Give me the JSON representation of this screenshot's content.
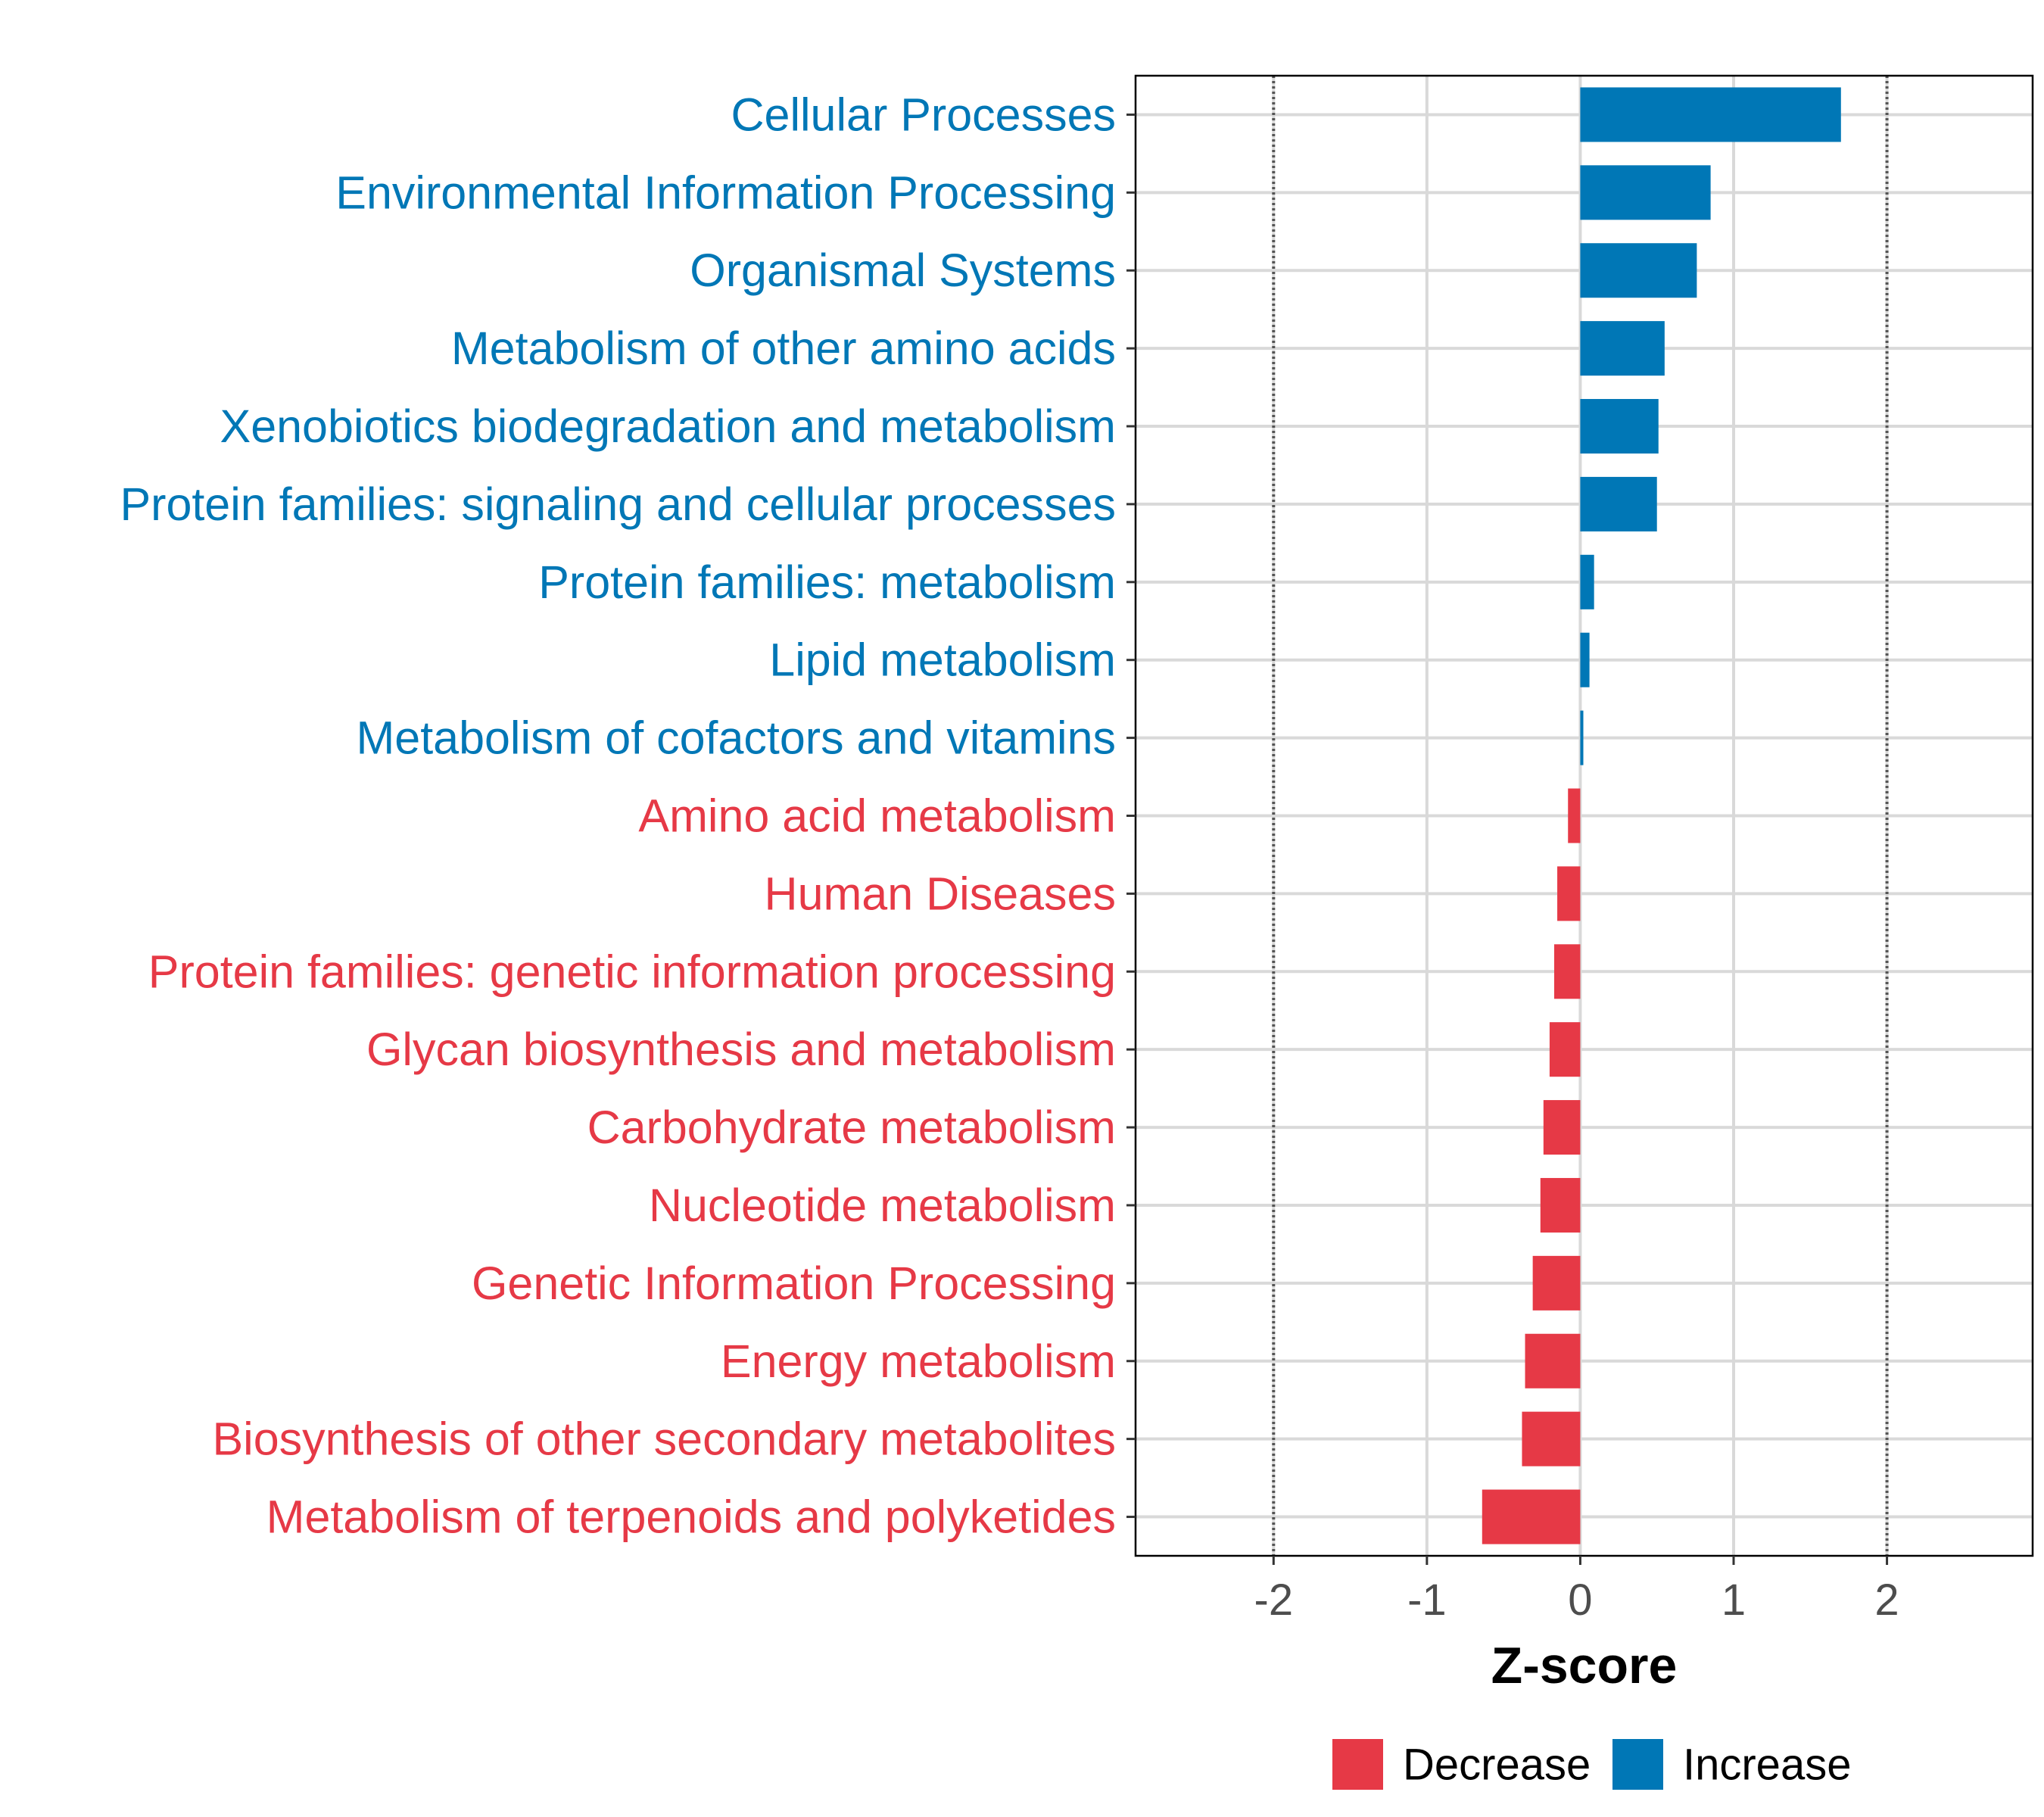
{
  "colors": {
    "increase": "#0077B6",
    "decrease": "#E63946",
    "grid": "#D9D9D9",
    "axis_text": "#4D4D4D",
    "reference_line": "#555555"
  },
  "chart_data": {
    "type": "bar",
    "orientation": "horizontal",
    "title": "",
    "xlabel": "Z-score",
    "ylabel": "",
    "xlim": [
      -2.9,
      2.95
    ],
    "xticks": [
      -2,
      -1,
      0,
      1,
      2
    ],
    "xtick_labels": [
      "-2",
      "-1",
      "0",
      "1",
      "2"
    ],
    "reference_lines": [
      -2,
      2
    ],
    "grid": true,
    "legend_position": "bottom",
    "legend": [
      {
        "label": "Decrease",
        "color": "#E63946"
      },
      {
        "label": "Increase",
        "color": "#0077B6"
      }
    ],
    "categories": [
      "Cellular Processes",
      "Environmental Information Processing",
      "Organismal Systems",
      "Metabolism of other amino acids",
      "Xenobiotics biodegradation and metabolism",
      "Protein families: signaling and cellular processes",
      "Protein families: metabolism",
      "Lipid metabolism",
      "Metabolism of cofactors and vitamins",
      "Amino acid metabolism",
      "Human Diseases",
      "Protein families: genetic information processing",
      "Glycan biosynthesis and metabolism",
      "Carbohydrate metabolism",
      "Nucleotide metabolism",
      "Genetic Information Processing",
      "Energy metabolism",
      "Biosynthesis of other secondary metabolites",
      "Metabolism of terpenoids and polyketides"
    ],
    "values": [
      1.7,
      0.85,
      0.76,
      0.55,
      0.51,
      0.5,
      0.09,
      0.06,
      0.02,
      -0.08,
      -0.15,
      -0.17,
      -0.2,
      -0.24,
      -0.26,
      -0.31,
      -0.36,
      -0.38,
      -0.64
    ],
    "groups": [
      "Increase",
      "Increase",
      "Increase",
      "Increase",
      "Increase",
      "Increase",
      "Increase",
      "Increase",
      "Increase",
      "Decrease",
      "Decrease",
      "Decrease",
      "Decrease",
      "Decrease",
      "Decrease",
      "Decrease",
      "Decrease",
      "Decrease",
      "Decrease"
    ]
  }
}
